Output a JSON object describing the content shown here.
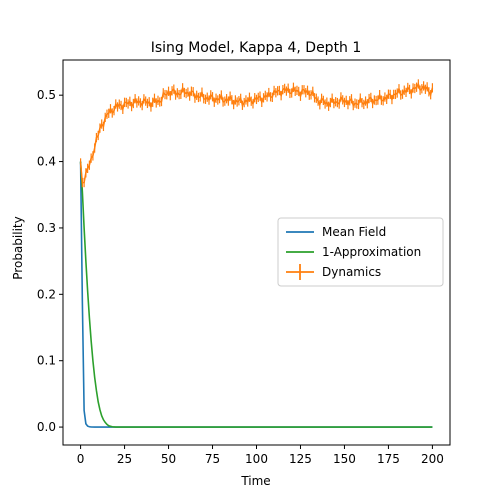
{
  "chart_data": {
    "type": "line",
    "title": "Ising Model, Kappa 4, Depth 1",
    "xlabel": "Time",
    "ylabel": "Probability",
    "xlim": [
      -10,
      210
    ],
    "ylim": [
      -0.027,
      0.553
    ],
    "xticks": [
      0,
      25,
      50,
      75,
      100,
      125,
      150,
      175,
      200
    ],
    "xtick_labels": [
      "0",
      "25",
      "50",
      "75",
      "100",
      "125",
      "150",
      "175",
      "200"
    ],
    "yticks": [
      0.0,
      0.1,
      0.2,
      0.3,
      0.4,
      0.5
    ],
    "ytick_labels": [
      "0.0",
      "0.1",
      "0.2",
      "0.3",
      "0.4",
      "0.5"
    ],
    "grid": false,
    "legend_position": "center-right",
    "series": [
      {
        "name": "Mean Field",
        "color": "#1f77b4",
        "style": "line",
        "x": [
          0,
          1,
          2,
          3,
          4,
          5,
          6,
          8,
          10,
          15,
          20,
          50,
          100,
          150,
          200
        ],
        "y": [
          0.4,
          0.19,
          0.025,
          0.005,
          0.0015,
          0.0005,
          0.0002,
          0.0,
          0.0,
          0.0,
          0.0,
          0.0,
          0.0,
          0.0,
          0.0
        ]
      },
      {
        "name": "1-Approximation",
        "color": "#2ca02c",
        "style": "line",
        "x": [
          0,
          1,
          2,
          3,
          4,
          5,
          6,
          7,
          8,
          9,
          10,
          11,
          12,
          13,
          14,
          15,
          16,
          18,
          20,
          25,
          50,
          100,
          150,
          200
        ],
        "y": [
          0.4,
          0.355,
          0.3,
          0.25,
          0.205,
          0.165,
          0.13,
          0.1,
          0.075,
          0.055,
          0.038,
          0.026,
          0.017,
          0.011,
          0.007,
          0.004,
          0.002,
          0.0005,
          0.0,
          0.0,
          0.0,
          0.0,
          0.0,
          0.0
        ]
      },
      {
        "name": "Dynamics",
        "color": "#ff7f0e",
        "style": "errorbar",
        "error": 0.007,
        "x": [
          0,
          1,
          2,
          3,
          4,
          5,
          6,
          7,
          8,
          10,
          12,
          14,
          16,
          18,
          20,
          22,
          25,
          28,
          30,
          35,
          40,
          45,
          48,
          50,
          55,
          60,
          65,
          70,
          75,
          80,
          85,
          90,
          95,
          100,
          105,
          110,
          115,
          120,
          125,
          130,
          135,
          140,
          145,
          150,
          155,
          160,
          165,
          170,
          175,
          180,
          185,
          190,
          193,
          196,
          198,
          200
        ],
        "y": [
          0.395,
          0.365,
          0.375,
          0.383,
          0.388,
          0.395,
          0.4,
          0.412,
          0.425,
          0.44,
          0.455,
          0.465,
          0.473,
          0.478,
          0.482,
          0.484,
          0.486,
          0.488,
          0.489,
          0.49,
          0.488,
          0.492,
          0.5,
          0.505,
          0.503,
          0.505,
          0.5,
          0.497,
          0.495,
          0.494,
          0.493,
          0.49,
          0.491,
          0.494,
          0.497,
          0.503,
          0.507,
          0.507,
          0.505,
          0.505,
          0.492,
          0.488,
          0.49,
          0.492,
          0.488,
          0.489,
          0.492,
          0.494,
          0.497,
          0.503,
          0.506,
          0.51,
          0.513,
          0.51,
          0.506,
          0.508
        ]
      }
    ]
  }
}
